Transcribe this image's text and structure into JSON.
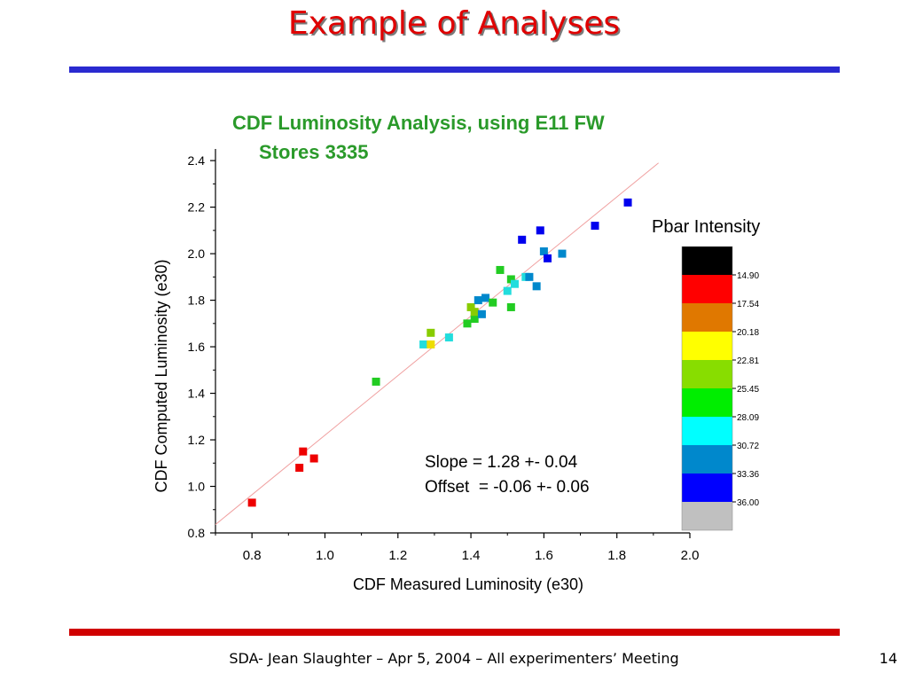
{
  "slide": {
    "title": "Example of Analyses",
    "footer": "SDA- Jean Slaughter – Apr 5, 2004 – All experimenters’ Meeting",
    "page_number": "14"
  },
  "colors": {
    "title": "#e00000",
    "top_rule": "#2a2ad0",
    "bottom_rule": "#d00000",
    "chart_title": "#2a9a2a",
    "fit_line": "#f0a0a0"
  },
  "chart_data": {
    "type": "scatter",
    "title_lines": [
      "CDF Luminosity Analysis, using E11 FW",
      "Stores 3335"
    ],
    "xlabel": "CDF Measured Luminosity (e30)",
    "ylabel": "CDF Computed Luminosity (e30)",
    "xlim": [
      0.7,
      2.0
    ],
    "ylim": [
      0.8,
      2.45
    ],
    "xticks": [
      "0.8",
      "1.0",
      "1.2",
      "1.4",
      "1.6",
      "1.8",
      "2.0"
    ],
    "yticks": [
      "0.8",
      "1.0",
      "1.2",
      "1.4",
      "1.6",
      "1.8",
      "2.0",
      "2.2",
      "2.4"
    ],
    "fit": {
      "slope": 1.28,
      "offset": -0.06
    },
    "annotations": [
      "Slope = 1.28 +- 0.04",
      "Offset  = -0.06 +- 0.06"
    ],
    "colorbar": {
      "title": "Pbar Intensity",
      "colors": [
        "#000000",
        "#ff0000",
        "#e07800",
        "#ffff00",
        "#88dd00",
        "#00ee00",
        "#00ffff",
        "#0088cc",
        "#0000ff",
        "#c0c0c0"
      ],
      "labels": [
        "14.90",
        "17.54",
        "20.18",
        "22.81",
        "25.45",
        "28.09",
        "30.72",
        "33.36",
        "36.00"
      ]
    },
    "points": [
      {
        "x": 0.8,
        "y": 0.93,
        "color": "#ee0000"
      },
      {
        "x": 0.93,
        "y": 1.08,
        "color": "#ee0000"
      },
      {
        "x": 0.94,
        "y": 1.15,
        "color": "#ee0000"
      },
      {
        "x": 0.97,
        "y": 1.12,
        "color": "#ee0000"
      },
      {
        "x": 1.14,
        "y": 1.45,
        "color": "#22cc22"
      },
      {
        "x": 1.27,
        "y": 1.61,
        "color": "#22dddd"
      },
      {
        "x": 1.29,
        "y": 1.66,
        "color": "#88cc00"
      },
      {
        "x": 1.29,
        "y": 1.61,
        "color": "#eedd00"
      },
      {
        "x": 1.34,
        "y": 1.64,
        "color": "#22dddd"
      },
      {
        "x": 1.39,
        "y": 1.7,
        "color": "#22cc22"
      },
      {
        "x": 1.4,
        "y": 1.77,
        "color": "#88cc00"
      },
      {
        "x": 1.41,
        "y": 1.72,
        "color": "#22cc22"
      },
      {
        "x": 1.41,
        "y": 1.75,
        "color": "#88cc00"
      },
      {
        "x": 1.42,
        "y": 1.8,
        "color": "#0088cc"
      },
      {
        "x": 1.43,
        "y": 1.74,
        "color": "#0088cc"
      },
      {
        "x": 1.44,
        "y": 1.81,
        "color": "#0088cc"
      },
      {
        "x": 1.46,
        "y": 1.79,
        "color": "#22cc22"
      },
      {
        "x": 1.48,
        "y": 1.93,
        "color": "#22cc22"
      },
      {
        "x": 1.5,
        "y": 1.84,
        "color": "#22dddd"
      },
      {
        "x": 1.51,
        "y": 1.77,
        "color": "#22cc22"
      },
      {
        "x": 1.51,
        "y": 1.89,
        "color": "#22cc22"
      },
      {
        "x": 1.52,
        "y": 1.87,
        "color": "#22dddd"
      },
      {
        "x": 1.54,
        "y": 2.06,
        "color": "#0000ee"
      },
      {
        "x": 1.55,
        "y": 1.9,
        "color": "#22dddd"
      },
      {
        "x": 1.56,
        "y": 1.9,
        "color": "#0088cc"
      },
      {
        "x": 1.58,
        "y": 1.86,
        "color": "#0088cc"
      },
      {
        "x": 1.59,
        "y": 2.1,
        "color": "#0000ee"
      },
      {
        "x": 1.6,
        "y": 2.01,
        "color": "#0088cc"
      },
      {
        "x": 1.61,
        "y": 1.98,
        "color": "#0000ee"
      },
      {
        "x": 1.65,
        "y": 2.0,
        "color": "#0088cc"
      },
      {
        "x": 1.74,
        "y": 2.12,
        "color": "#0000ee"
      },
      {
        "x": 1.83,
        "y": 2.22,
        "color": "#0000ee"
      }
    ]
  }
}
